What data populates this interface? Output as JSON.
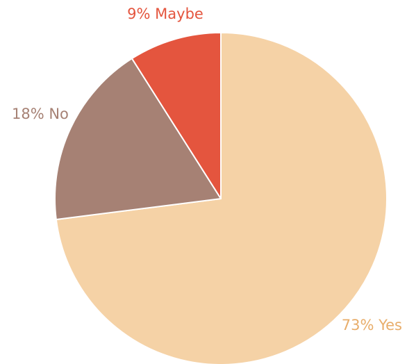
{
  "chart_data": {
    "type": "pie",
    "slices": [
      {
        "category": "Yes",
        "value": 73,
        "label": "73% Yes",
        "color": "#f5d2a6",
        "label_color": "#e8ad6a"
      },
      {
        "category": "No",
        "value": 18,
        "label": "18% No",
        "color": "#a68174",
        "label_color": "#a68174"
      },
      {
        "category": "Maybe",
        "value": 9,
        "label": "9% Maybe",
        "color": "#e4553e",
        "label_color": "#e4553e"
      }
    ],
    "start_angle_deg": 0,
    "direction": "clockwise"
  }
}
